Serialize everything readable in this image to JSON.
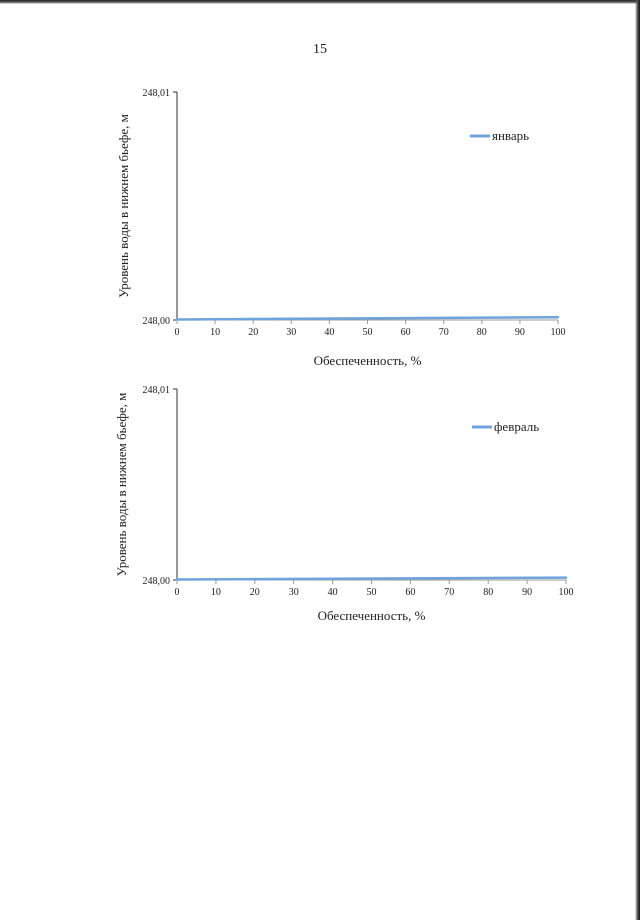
{
  "page": {
    "number": "15"
  },
  "colors": {
    "series": "#6fa3de",
    "axis": "#333333",
    "text": "#222222"
  },
  "chart_data": [
    {
      "type": "line",
      "title": "",
      "xlabel": "Обеспеченность, %",
      "ylabel": "Уровень воды в нижнем бьефе, м",
      "xlim": [
        0,
        100
      ],
      "ylim": [
        248.0,
        248.01
      ],
      "x_ticks": [
        "0",
        "10",
        "20",
        "30",
        "40",
        "50",
        "60",
        "70",
        "80",
        "90",
        "100"
      ],
      "y_ticks": [
        "248,00",
        "248,01"
      ],
      "grid": false,
      "legend": "top-right",
      "series": [
        {
          "name": "январь",
          "x": [
            0,
            100
          ],
          "values": [
            248.0,
            248.0001
          ]
        }
      ]
    },
    {
      "type": "line",
      "title": "",
      "xlabel": "Обеспеченность, %",
      "ylabel": "Уровень воды в нижнем бьефе, м",
      "xlim": [
        0,
        100
      ],
      "ylim": [
        248.0,
        248.01
      ],
      "x_ticks": [
        "0",
        "10",
        "20",
        "30",
        "40",
        "50",
        "60",
        "70",
        "80",
        "90",
        "100"
      ],
      "y_ticks": [
        "248,00",
        "248,01"
      ],
      "grid": false,
      "legend": "top-right",
      "series": [
        {
          "name": "февраль",
          "x": [
            0,
            100
          ],
          "values": [
            248.0,
            248.0001
          ]
        }
      ]
    }
  ]
}
